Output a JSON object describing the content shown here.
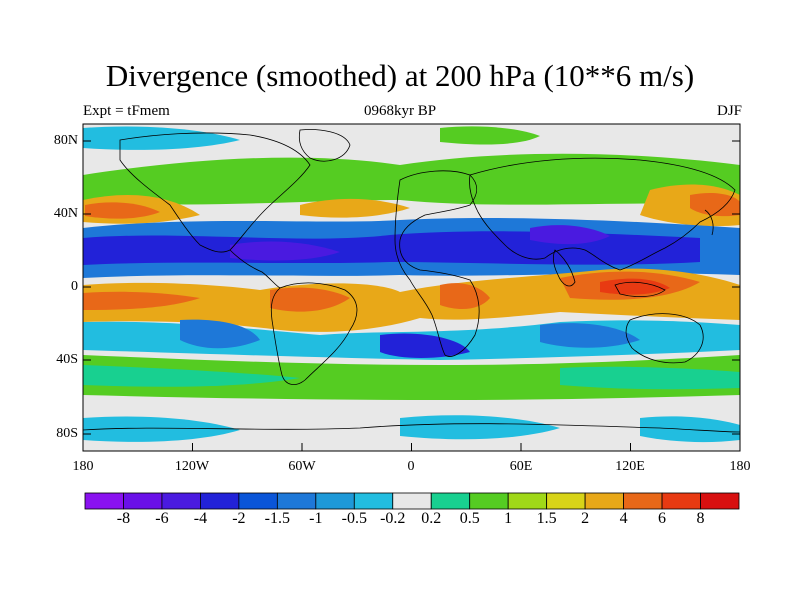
{
  "title": "Divergence (smoothed) at 200 hPa (10**6 m/s)",
  "subtitle_left": "Expt = tFmem",
  "subtitle_center": "0968kyr BP",
  "subtitle_right": "DJF",
  "lat_labels": [
    "80N",
    "40N",
    "0",
    "40S",
    "80S"
  ],
  "lon_labels": [
    "180",
    "120W",
    "60W",
    "0",
    "60E",
    "120E",
    "180"
  ],
  "colorbar": {
    "labels": [
      "-8",
      "-6",
      "-4",
      "-2",
      "-1.5",
      "-1",
      "-0.5",
      "-0.2",
      "0.2",
      "0.5",
      "1",
      "1.5",
      "2",
      "4",
      "6",
      "8"
    ],
    "colors": [
      "#8a12f0",
      "#6a10e8",
      "#4a1ae0",
      "#2222d8",
      "#0a55d8",
      "#1e78d8",
      "#1e99d8",
      "#22bde0",
      "#e8e8e8",
      "#18d090",
      "#55cc22",
      "#a0d818",
      "#d8d418",
      "#e8a818",
      "#e86818",
      "#e83a12",
      "#d81010"
    ]
  },
  "colors": {
    "neg_strong": "#2222d8",
    "neg_mid": "#1e78d8",
    "neg_weak": "#22bde0",
    "neutral": "#e8e8e8",
    "pos_weak": "#18d090",
    "pos_mid": "#55cc22",
    "pos_strong": "#e86818",
    "coast": "#000000"
  }
}
